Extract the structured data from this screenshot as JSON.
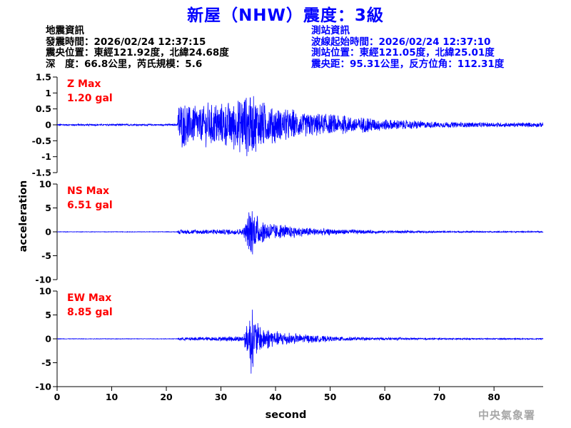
{
  "header": {
    "title": "新屋（NHW）震度：3級"
  },
  "quake_info": {
    "heading": "地震資訊",
    "origin_time": "發震時間：2026/02/24 12:37:15",
    "epicenter": "震央位置：東經121.92度，北緯24.68度",
    "depth_magnitude": "深　度：66.8公里，芮氏規模：5.6"
  },
  "station_info": {
    "heading": "測站資訊",
    "wave_start": "波線起始時間：2026/02/24 12:37:10",
    "station_location": "測站位置：東經121.05度，北緯25.01度",
    "distance_azimuth": "震央距：95.31公里，反方位角：112.31度"
  },
  "agency": "中央氣象署",
  "colors": {
    "trace": "#0000ff",
    "max_label": "#ff0000",
    "title": "#0000ff"
  },
  "chart_data": {
    "type": "line",
    "xlabel": "second",
    "ylabel": "acceleration",
    "xlim": [
      0,
      89
    ],
    "xticks": [
      0,
      10,
      20,
      30,
      40,
      50,
      60,
      70,
      80
    ],
    "panels": [
      {
        "name": "Z",
        "max_label": "Z Max",
        "max_value": "1.20 gal",
        "ylim": [
          -1.5,
          1.5
        ],
        "yticks": [
          1.5,
          1,
          0.5,
          0,
          -0.5,
          -1,
          -1.5
        ],
        "ytick_labels": [
          "1.5",
          "1",
          "0.5",
          "0",
          "-0.5",
          "-1",
          "-1.5"
        ],
        "envelope": {
          "t": [
            0,
            22,
            22.3,
            25,
            30,
            33,
            35,
            36,
            38,
            40,
            45,
            50,
            55,
            60,
            65,
            70,
            75,
            80,
            85,
            89
          ],
          "amp": [
            0.03,
            0.03,
            0.85,
            0.7,
            0.75,
            0.9,
            1.2,
            1.0,
            0.8,
            0.6,
            0.45,
            0.35,
            0.3,
            0.2,
            0.15,
            0.1,
            0.09,
            0.08,
            0.08,
            0.08
          ]
        }
      },
      {
        "name": "NS",
        "max_label": "NS Max",
        "max_value": "6.51 gal",
        "ylim": [
          -10,
          10
        ],
        "yticks": [
          10,
          5,
          0,
          -5,
          -10
        ],
        "ytick_labels": [
          "10",
          "5",
          "0",
          "-5",
          "-10"
        ],
        "envelope": {
          "t": [
            0,
            22,
            22.3,
            25,
            30,
            34,
            35,
            35.5,
            36,
            37,
            40,
            45,
            50,
            55,
            60,
            70,
            80,
            89
          ],
          "amp": [
            0.06,
            0.06,
            0.5,
            0.5,
            0.6,
            0.8,
            4.0,
            6.51,
            5.0,
            3.0,
            1.8,
            1.1,
            0.7,
            0.5,
            0.35,
            0.2,
            0.15,
            0.15
          ]
        }
      },
      {
        "name": "EW",
        "max_label": "EW Max",
        "max_value": "8.85 gal",
        "ylim": [
          -10,
          10
        ],
        "yticks": [
          10,
          5,
          0,
          -5,
          -10
        ],
        "ytick_labels": [
          "10",
          "5",
          "0",
          "-5",
          "-10"
        ],
        "envelope": {
          "t": [
            0,
            22,
            22.3,
            25,
            30,
            34,
            35,
            35.5,
            36,
            37,
            40,
            45,
            50,
            55,
            60,
            70,
            80,
            89
          ],
          "amp": [
            0.06,
            0.06,
            0.35,
            0.4,
            0.5,
            0.7,
            4.0,
            8.85,
            5.5,
            3.0,
            1.8,
            1.0,
            0.6,
            0.4,
            0.3,
            0.18,
            0.14,
            0.14
          ]
        }
      }
    ]
  }
}
